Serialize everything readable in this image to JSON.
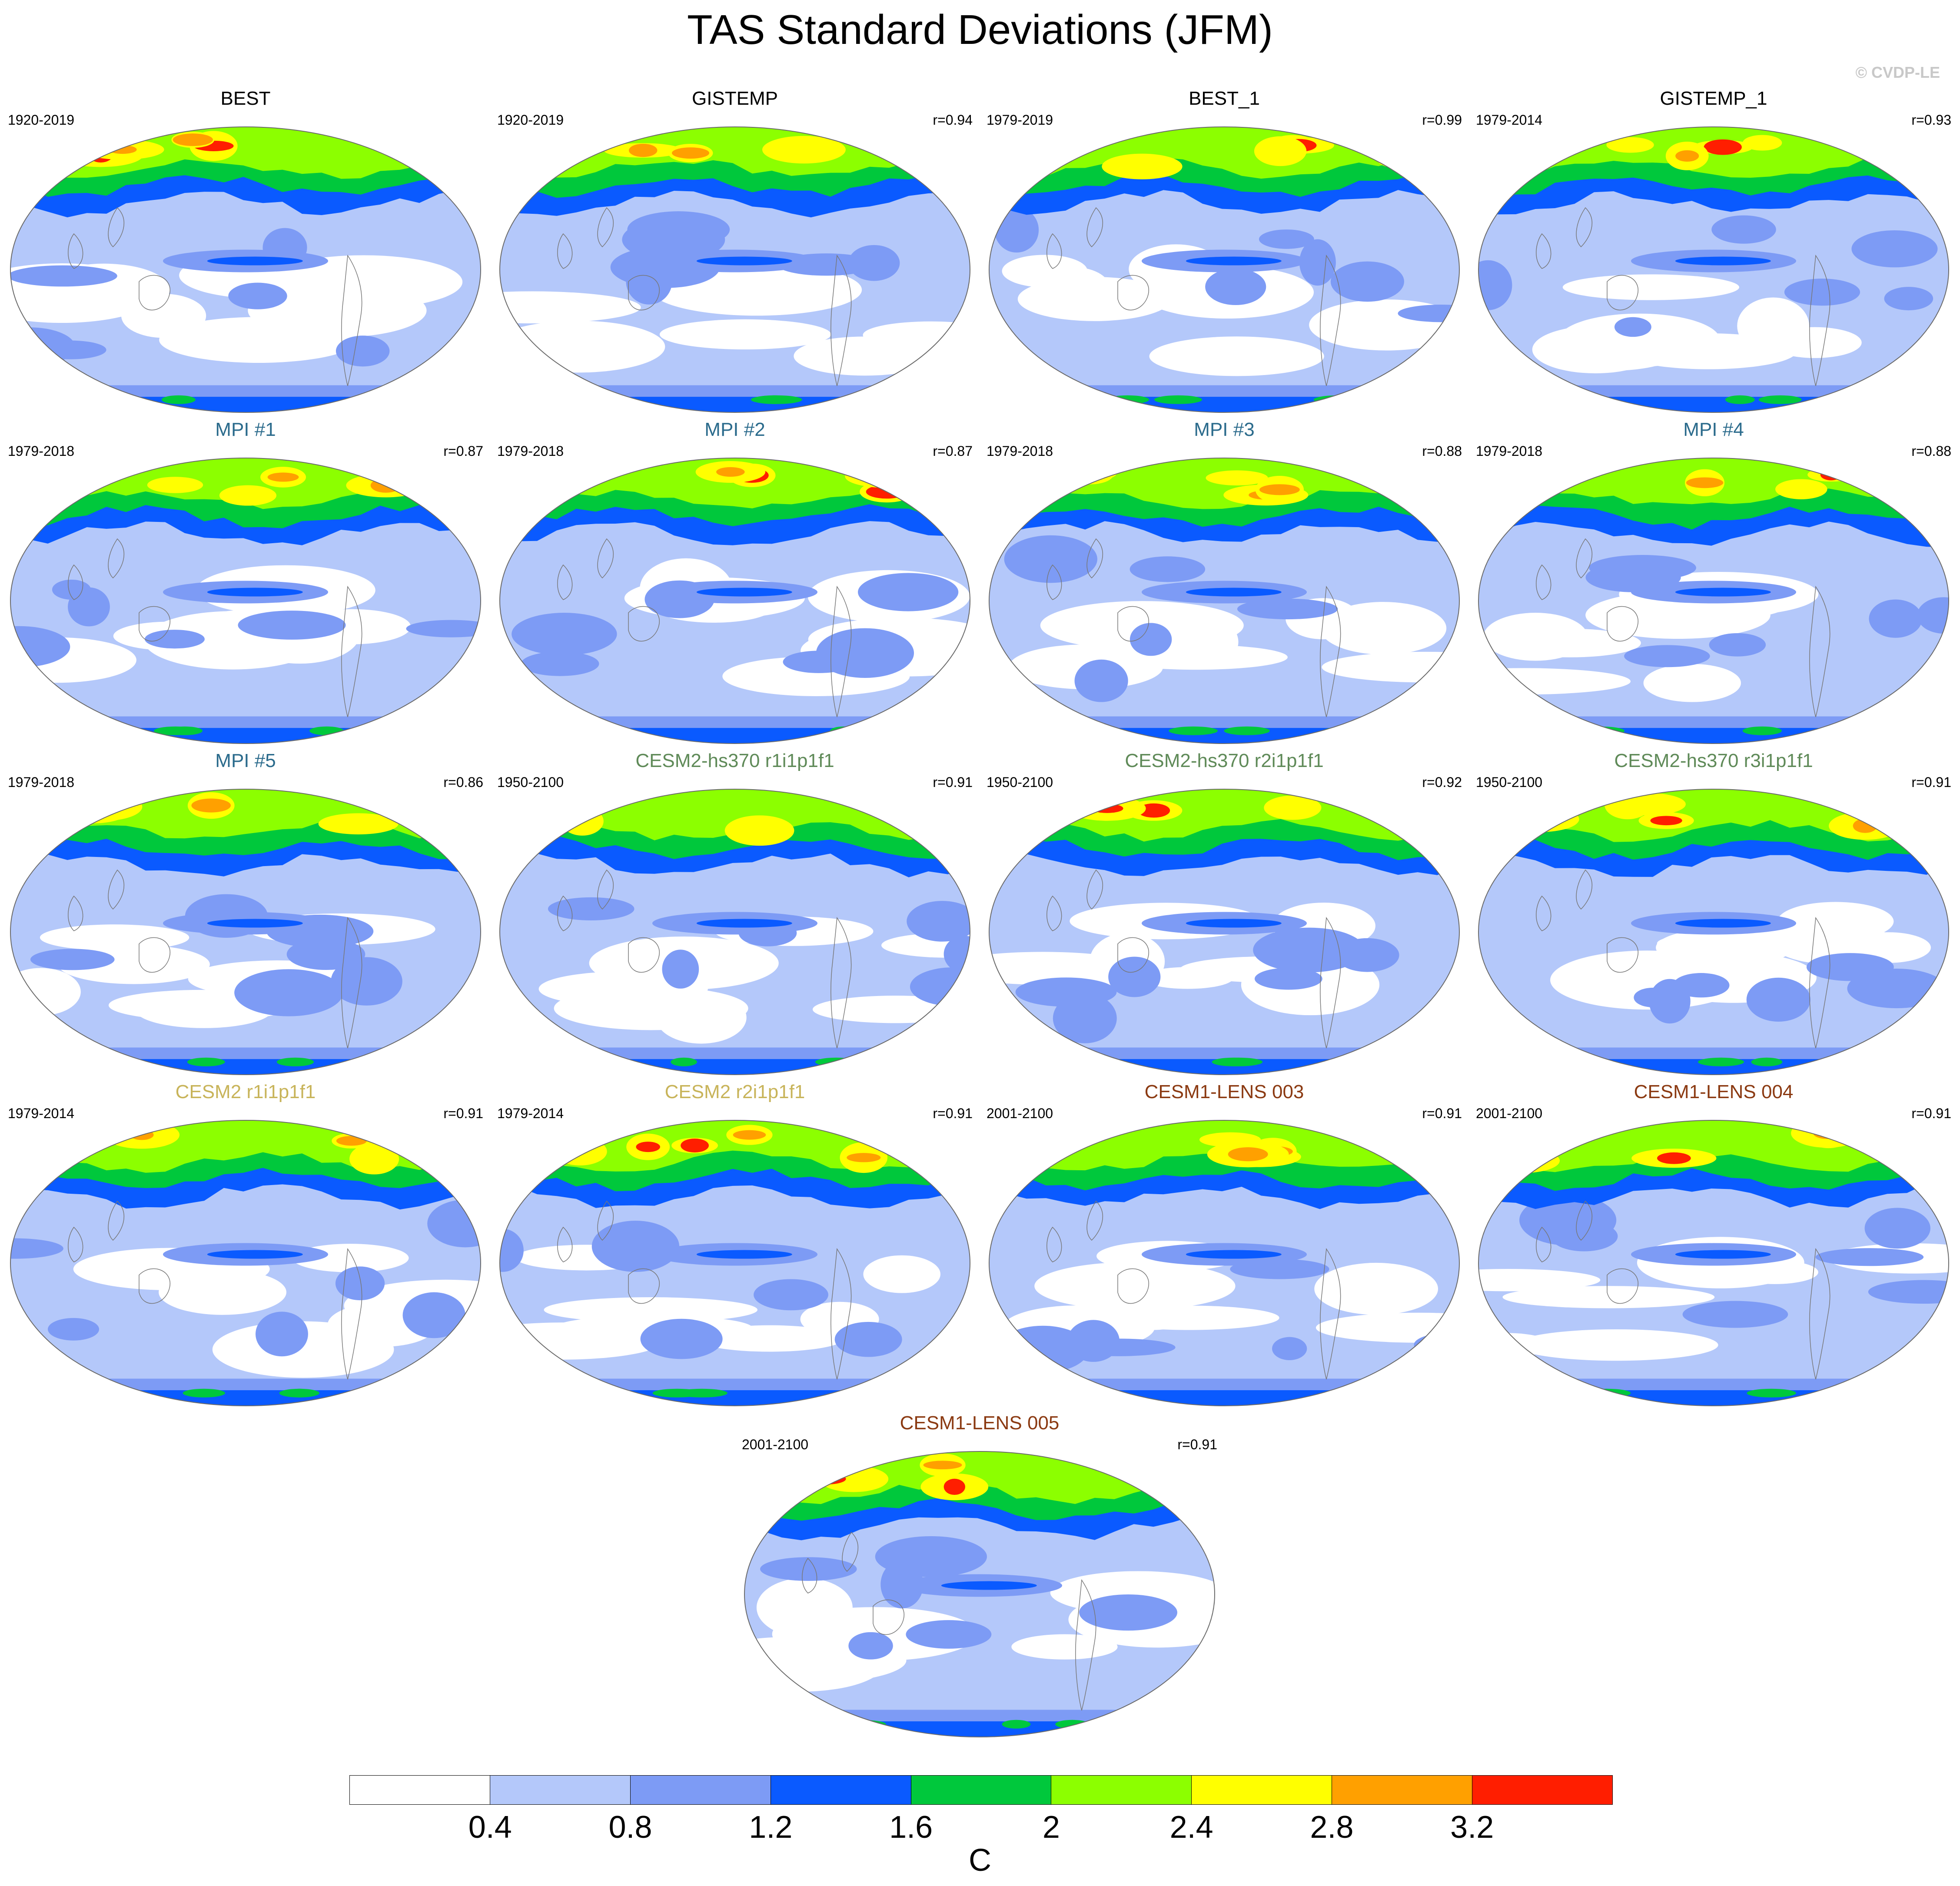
{
  "title": "TAS Standard Deviations (JFM)",
  "credit": "© CVDP-LE",
  "panels": [
    {
      "title": "BEST",
      "years": "1920-2019",
      "corr": "",
      "color": "#000000",
      "row": 0,
      "col": 0
    },
    {
      "title": "GISTEMP",
      "years": "1920-2019",
      "corr": "r=0.94",
      "color": "#000000",
      "row": 0,
      "col": 1
    },
    {
      "title": "BEST_1",
      "years": "1979-2019",
      "corr": "r=0.99",
      "color": "#000000",
      "row": 0,
      "col": 2
    },
    {
      "title": "GISTEMP_1",
      "years": "1979-2014",
      "corr": "r=0.93",
      "color": "#000000",
      "row": 0,
      "col": 3
    },
    {
      "title": "MPI #1",
      "years": "1979-2018",
      "corr": "r=0.87",
      "color": "#2b6b8c",
      "row": 1,
      "col": 0
    },
    {
      "title": "MPI #2",
      "years": "1979-2018",
      "corr": "r=0.87",
      "color": "#2b6b8c",
      "row": 1,
      "col": 1
    },
    {
      "title": "MPI #3",
      "years": "1979-2018",
      "corr": "r=0.88",
      "color": "#2b6b8c",
      "row": 1,
      "col": 2
    },
    {
      "title": "MPI #4",
      "years": "1979-2018",
      "corr": "r=0.88",
      "color": "#2b6b8c",
      "row": 1,
      "col": 3
    },
    {
      "title": "MPI #5",
      "years": "1979-2018",
      "corr": "r=0.86",
      "color": "#2b6b8c",
      "row": 2,
      "col": 0
    },
    {
      "title": "CESM2-hs370 r1i1p1f1",
      "years": "1950-2100",
      "corr": "r=0.91",
      "color": "#5f8a58",
      "row": 2,
      "col": 1
    },
    {
      "title": "CESM2-hs370 r2i1p1f1",
      "years": "1950-2100",
      "corr": "r=0.92",
      "color": "#5f8a58",
      "row": 2,
      "col": 2
    },
    {
      "title": "CESM2-hs370 r3i1p1f1",
      "years": "1950-2100",
      "corr": "r=0.91",
      "color": "#5f8a58",
      "row": 2,
      "col": 3
    },
    {
      "title": "CESM2 r1i1p1f1",
      "years": "1979-2014",
      "corr": "r=0.91",
      "color": "#c8b45a",
      "row": 3,
      "col": 0
    },
    {
      "title": "CESM2 r2i1p1f1",
      "years": "1979-2014",
      "corr": "r=0.91",
      "color": "#c8b45a",
      "row": 3,
      "col": 1
    },
    {
      "title": "CESM1-LENS 003",
      "years": "2001-2100",
      "corr": "r=0.91",
      "color": "#8b3a12",
      "row": 3,
      "col": 2
    },
    {
      "title": "CESM1-LENS 004",
      "years": "2001-2100",
      "corr": "r=0.91",
      "color": "#8b3a12",
      "row": 3,
      "col": 3
    },
    {
      "title": "CESM1-LENS 005",
      "years": "2001-2100",
      "corr": "r=0.91",
      "color": "#8b3a12",
      "row": 4,
      "col": 1.5
    }
  ],
  "colorbar": {
    "colors": [
      "#ffffff",
      "#b4c8fa",
      "#7d9bf5",
      "#0a5aff",
      "#00c83c",
      "#8cff00",
      "#ffff00",
      "#ffa000",
      "#ff1e00"
    ],
    "ticks": [
      "0.4",
      "0.8",
      "1.2",
      "1.6",
      "2",
      "2.4",
      "2.8",
      "3.2"
    ],
    "label": "C"
  }
}
